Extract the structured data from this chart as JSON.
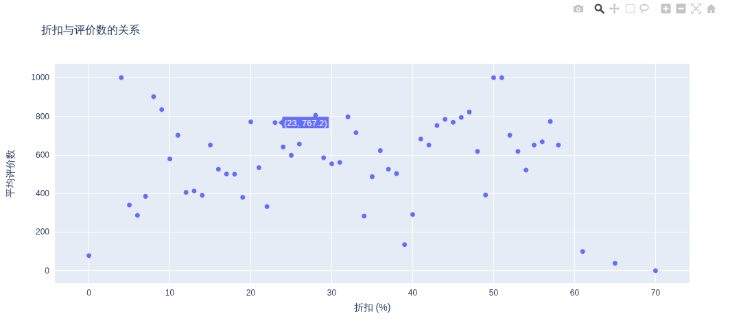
{
  "chart_data": {
    "type": "scatter",
    "title": "折扣与评价数的关系",
    "xlabel": "折扣 (%)",
    "ylabel": "平均评价数",
    "x": [
      0,
      4,
      5,
      6,
      7,
      8,
      9,
      10,
      11,
      12,
      13,
      14,
      15,
      16,
      17,
      18,
      19,
      20,
      21,
      22,
      23,
      24,
      25,
      26,
      28,
      29,
      30,
      31,
      32,
      33,
      34,
      35,
      36,
      37,
      38,
      39,
      40,
      41,
      42,
      43,
      44,
      45,
      46,
      47,
      48,
      49,
      50,
      51,
      52,
      53,
      54,
      55,
      56,
      57,
      58,
      61,
      65,
      70
    ],
    "values": [
      78,
      1000,
      340,
      287,
      385,
      902,
      835,
      579,
      702,
      406,
      413,
      391,
      651,
      526,
      501,
      500,
      380,
      771,
      534,
      332,
      767.2,
      641,
      598,
      656,
      805,
      585,
      554,
      561,
      797,
      715,
      283,
      487,
      622,
      526,
      503,
      135,
      291,
      682,
      651,
      752,
      784,
      769,
      794,
      822,
      618,
      392,
      1000,
      1000,
      702,
      618,
      521,
      651,
      668,
      773,
      651,
      99,
      38,
      0
    ],
    "color": "#636efa",
    "marker": "circle",
    "grid": true,
    "xlim": [
      -4.2,
      74.2
    ],
    "ylim": [
      -65,
      1072
    ],
    "xticks": [
      0,
      10,
      20,
      30,
      40,
      50,
      60,
      70
    ],
    "yticks": [
      0,
      200,
      400,
      600,
      800,
      1000
    ],
    "annotations": [
      {
        "text": "(23, 767.2)",
        "x": 23,
        "y": 767.2
      }
    ]
  }
}
